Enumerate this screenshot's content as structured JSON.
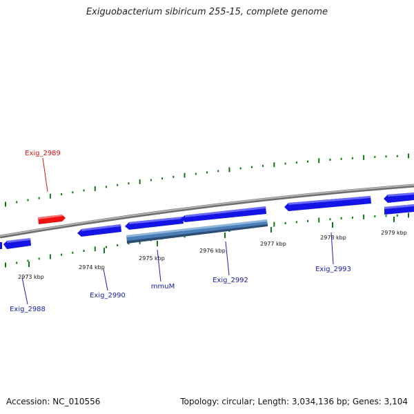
{
  "title": "Exiguobacterium sibiricum 255-15, complete genome",
  "footer": {
    "accession": "Accession: NC_010556",
    "summary": "Topology: circular; Length: 3,034,136 bp; Genes: 3,104"
  },
  "colors": {
    "backbone": "#8c8c8c",
    "gene_forward": "#1414e6",
    "gene_highlight": "#ee1111",
    "gene_selected": "#4a7fb8",
    "tick": "#117711",
    "label_default": "#1a1aa8",
    "label_highlight": "#dd1111"
  },
  "ticks": [
    {
      "label": "2973 kbp"
    },
    {
      "label": "2974 kbp"
    },
    {
      "label": "2975 kbp"
    },
    {
      "label": "2976 kbp"
    },
    {
      "label": "2977 kbp"
    },
    {
      "label": "2978 kbp"
    },
    {
      "label": "2979 kbp"
    }
  ],
  "gene_labels": [
    {
      "name": "Exig_2989",
      "highlight": true
    },
    {
      "name": "Exig_2988",
      "highlight": false
    },
    {
      "name": "Exig_2990",
      "highlight": false
    },
    {
      "name": "mmuM",
      "highlight": false
    },
    {
      "name": "Exig_2992",
      "highlight": false
    },
    {
      "name": "Exig_2993",
      "highlight": false
    }
  ]
}
